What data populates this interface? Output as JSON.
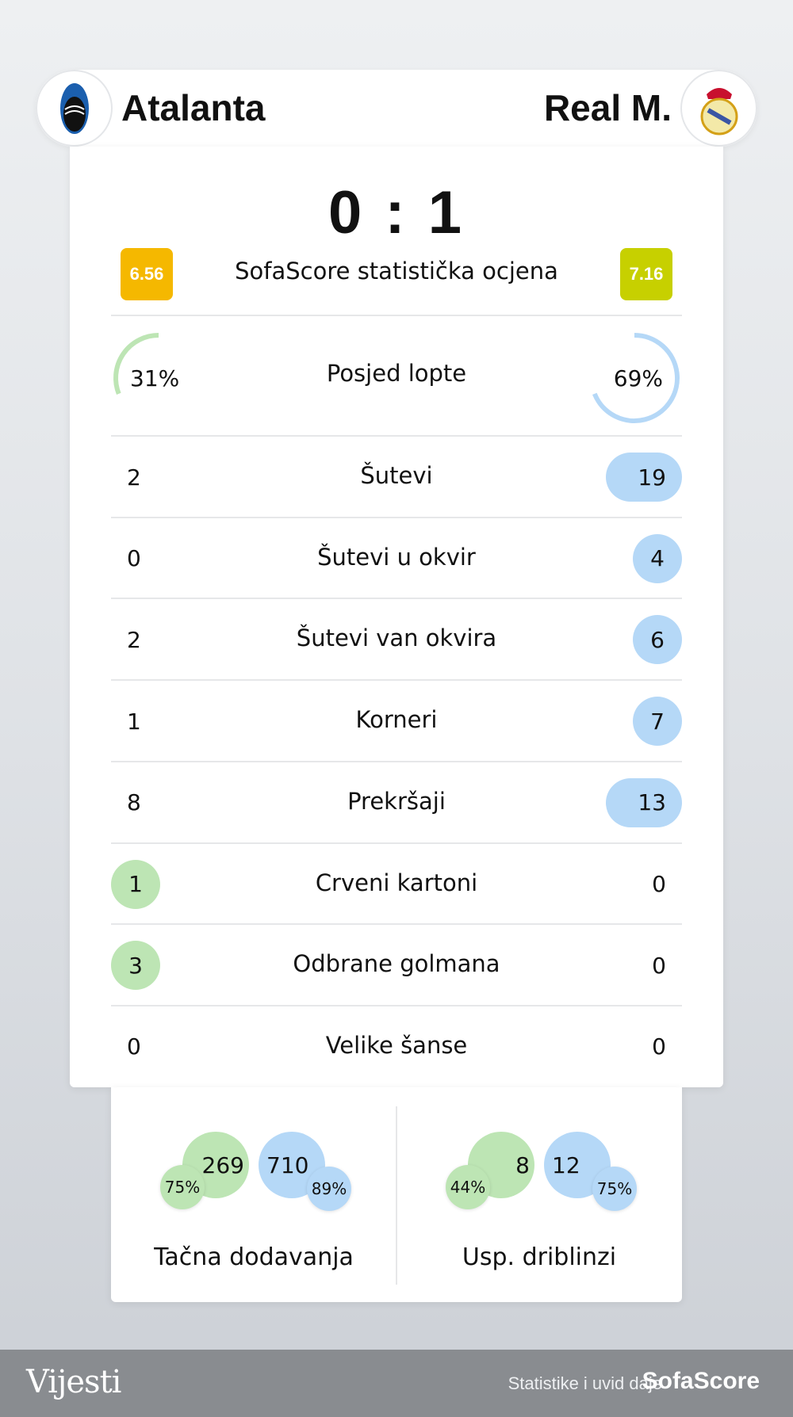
{
  "home": {
    "name": "Atalanta",
    "score": "0",
    "rating": "6.56",
    "rating_color": "#f5b800",
    "color": "#bde5b4"
  },
  "away": {
    "name": "Real M.",
    "score": "1",
    "rating": "7.16",
    "rating_color": "#c7d000",
    "color": "#b5d8f7"
  },
  "score_separator": ":",
  "rating_label": "SofaScore statistička ocjena",
  "possession": {
    "label": "Posjed lopte",
    "home": "31%",
    "away": "69%",
    "home_value": 31,
    "away_value": 69
  },
  "stats": [
    {
      "label": "Šutevi",
      "home": "2",
      "away": "19",
      "leader": "away"
    },
    {
      "label": "Šutevi u okvir",
      "home": "0",
      "away": "4",
      "leader": "away"
    },
    {
      "label": "Šutevi van okvira",
      "home": "2",
      "away": "6",
      "leader": "away"
    },
    {
      "label": "Korneri",
      "home": "1",
      "away": "7",
      "leader": "away"
    },
    {
      "label": "Prekršaji",
      "home": "8",
      "away": "13",
      "leader": "away"
    },
    {
      "label": "Crveni kartoni",
      "home": "1",
      "away": "0",
      "leader": "home"
    },
    {
      "label": "Odbrane golmana",
      "home": "3",
      "away": "0",
      "leader": "home"
    },
    {
      "label": "Velike šanse",
      "home": "0",
      "away": "0",
      "leader": "none"
    }
  ],
  "bubbles": [
    {
      "label": "Tačna dodavanja",
      "home": "269",
      "home_pct": "75%",
      "away": "710",
      "away_pct": "89%"
    },
    {
      "label": "Usp. driblinzi",
      "home": "8",
      "home_pct": "44%",
      "away": "12",
      "away_pct": "75%"
    }
  ],
  "footer": {
    "brand": "Vijesti",
    "credit": "Statistike i uvid daje",
    "provider": "SofaScore"
  }
}
